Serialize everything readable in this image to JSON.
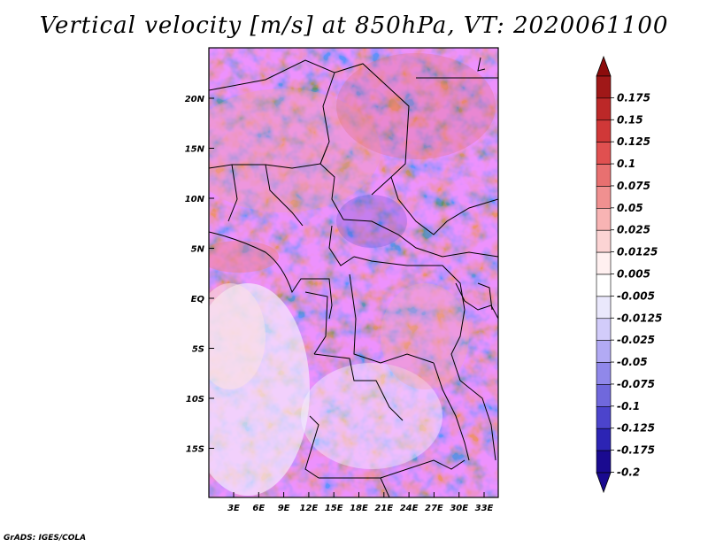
{
  "title": "Vertical velocity [m/s] at 850hPa, VT: 2020061100",
  "credit": "GrADS: IGES/COLA",
  "map": {
    "lat_ticks": [
      "20N",
      "15N",
      "10N",
      "5N",
      "EQ",
      "5S",
      "10S",
      "15S"
    ],
    "lon_ticks": [
      "3E",
      "6E",
      "9E",
      "12E",
      "15E",
      "18E",
      "21E",
      "24E",
      "27E",
      "30E",
      "33E"
    ]
  },
  "colorbar": {
    "labels": [
      "0.175",
      "0.15",
      "0.125",
      "0.1",
      "0.075",
      "0.05",
      "0.025",
      "0.0125",
      "0.005",
      "-0.005",
      "-0.0125",
      "-0.025",
      "-0.05",
      "-0.075",
      "-0.1",
      "-0.125",
      "-0.175",
      "-0.2"
    ],
    "colors": [
      "#a01818",
      "#bc2828",
      "#d03838",
      "#e05050",
      "#e87070",
      "#f09090",
      "#f8b4b4",
      "#fcd4d4",
      "#fff0f0",
      "#ffffff",
      "#eae8fc",
      "#d2ccfa",
      "#b2aaf4",
      "#9088ea",
      "#7068dc",
      "#4c44cc",
      "#2c24b4",
      "#1a0a90"
    ]
  }
}
